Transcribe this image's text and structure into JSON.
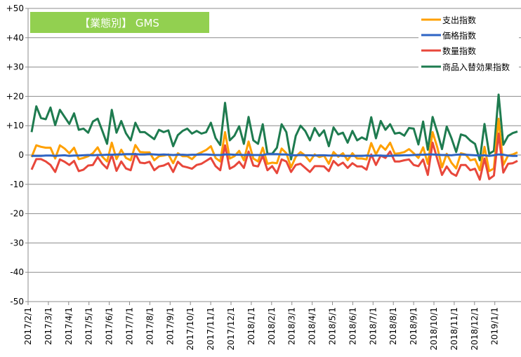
{
  "chart_data": {
    "type": "line",
    "title": "【業態別】 GMS",
    "xlabel": "",
    "ylabel": "",
    "ylim": [
      -50,
      50
    ],
    "yticks": [
      "+50",
      "+40",
      "+30",
      "+20",
      "+10",
      "0",
      "-10",
      "-20",
      "-30",
      "-40",
      "-50"
    ],
    "ytick_values": [
      50,
      40,
      30,
      20,
      10,
      0,
      -10,
      -20,
      -30,
      -40,
      -50
    ],
    "x_tick_labels": [
      "2017/2/1",
      "2017/3/1",
      "2017/4/1",
      "2017/5/1",
      "2017/6/1",
      "2017/7/1",
      "2017/8/1",
      "2017/9/1",
      "2017/10/1",
      "2017/11/1",
      "2017/12/1",
      "2018/1/1",
      "2018/2/1",
      "2018/3/1",
      "2018/4/1",
      "2018/5/1",
      "2018/6/1",
      "2018/7/1",
      "2018/8/1",
      "2018/9/1",
      "2018/10/1",
      "2018/11/1",
      "2018/12/1",
      "2019/1/1"
    ],
    "x_frequency": "weekly",
    "grid": true,
    "legend_position": "top-right",
    "series": [
      {
        "name": "支出指数",
        "color": "#FFA000",
        "values": [
          -0.7,
          3.3,
          2.8,
          2.5,
          2.5,
          -1.2,
          3.3,
          2.2,
          0.6,
          2.5,
          -1.4,
          -1,
          -0.4,
          0.6,
          2.6,
          -0.6,
          -2.2,
          4.2,
          -1.4,
          1.8,
          -1,
          -1.8,
          3.4,
          1,
          0.9,
          0.9,
          -1.8,
          -0.4,
          -0.2,
          0.2,
          -2.8,
          0.6,
          -0.4,
          -0.4,
          -1.4,
          0.2,
          0.9,
          1.7,
          3,
          -1,
          -2.2,
          7.8,
          -1.2,
          -0.4,
          1.4,
          -1.8,
          4.6,
          -1.2,
          -2.2,
          2.5,
          -3,
          -2.6,
          -2.8,
          2.2,
          0.6,
          -4.2,
          -0.6,
          1,
          -0.2,
          -2.2,
          0.2,
          -0.7,
          -0.2,
          -3,
          1,
          -0.6,
          0.6,
          -1.8,
          0.6,
          -1.2,
          -1.2,
          -1.5,
          4.1,
          0.2,
          3.3,
          1.8,
          4.2,
          0.4,
          0.6,
          1,
          2,
          0.6,
          -1,
          2.6,
          -3,
          7.8,
          2.6,
          -4.2,
          0.4,
          -2.6,
          -4.6,
          0.6,
          0.2,
          -1.8,
          -1.4,
          -5.2,
          2.8,
          -5.5,
          -4.6,
          12.4,
          -3.4,
          -0.2,
          0.2,
          0.9
        ]
      },
      {
        "name": "価格指数",
        "color": "#2E64C4",
        "values": [
          -0.3,
          -0.3,
          -0.3,
          -0.2,
          -0.2,
          -0.3,
          -0.2,
          -0.1,
          -0.3,
          -0.2,
          -0.2,
          -0.1,
          0,
          -0.1,
          0,
          0,
          0.1,
          0.1,
          0.2,
          0.2,
          0.3,
          0.3,
          0.3,
          0.2,
          0.2,
          0.3,
          0.2,
          0.1,
          0.2,
          0.1,
          0,
          0.1,
          0.1,
          0,
          0.1,
          0.1,
          0.2,
          0.2,
          0.1,
          0,
          0,
          0.2,
          0.2,
          0.1,
          0.1,
          0,
          0.1,
          0,
          0,
          0,
          0.3,
          0.3,
          0.3,
          0.2,
          0.2,
          -0.1,
          -0.1,
          0,
          -0.1,
          -0.1,
          -0.2,
          -0.1,
          -0.1,
          -0.2,
          -0.2,
          -0.2,
          -0.3,
          -0.3,
          -0.3,
          -0.3,
          -0.3,
          -0.2,
          -0.3,
          -0.2,
          -0.2,
          -0.3,
          -0.3,
          -0.2,
          -0.2,
          -0.1,
          -0.1,
          0,
          0.1,
          0.1,
          0.2,
          0.2,
          0.1,
          0,
          0,
          -0.1,
          0.1,
          0.2,
          0.1,
          0,
          -0.1,
          -0.2,
          -0.1,
          -0.3,
          -0.1,
          0.2,
          0.1,
          -0.2,
          -0.3,
          -0.3
        ]
      },
      {
        "name": "数量指数",
        "color": "#E8473B",
        "values": [
          -5,
          -1.4,
          -1.4,
          -2.2,
          -3.4,
          -5.8,
          -1.5,
          -2.3,
          -3.4,
          -2,
          -5.5,
          -5,
          -3.6,
          -3.4,
          -0.7,
          -3,
          -4.6,
          0.1,
          -5.4,
          -2.2,
          -4.6,
          -5.2,
          0.4,
          -2.6,
          -2.8,
          -2.3,
          -5.2,
          -3.9,
          -3.6,
          -2.8,
          -5.8,
          -2.3,
          -3.8,
          -4.2,
          -4.7,
          -3.4,
          -3,
          -2,
          -1,
          -3.8,
          -5.2,
          3.3,
          -4.7,
          -3.8,
          -2.3,
          -4.4,
          1.2,
          -3.6,
          -3.9,
          -0.2,
          -5.2,
          -3.8,
          -6.2,
          -1.5,
          -2.2,
          -5.8,
          -3.4,
          -3,
          -4.4,
          -5.8,
          -3.8,
          -3.8,
          -3.9,
          -5.5,
          -2,
          -3.6,
          -2.6,
          -4.4,
          -2.8,
          -3.9,
          -3.9,
          -5,
          0.2,
          -3.4,
          -0.2,
          -1,
          1.2,
          -2.2,
          -2.2,
          -1.8,
          -1.5,
          -3.4,
          -3.8,
          -1.5,
          -6.8,
          4.2,
          -1.4,
          -6.8,
          -3.9,
          -6.2,
          -7.1,
          -3.4,
          -3.4,
          -5.2,
          -4.7,
          -8.4,
          -1.2,
          -8.2,
          -7,
          7.3,
          -6,
          -3,
          -2.8,
          -2
        ]
      },
      {
        "name": "商品入替効果指数",
        "color": "#1E7B4F",
        "values": [
          7.8,
          16.6,
          12.6,
          12.2,
          16.2,
          10.2,
          15.4,
          13,
          10.6,
          14.2,
          8.6,
          9,
          7.6,
          11.4,
          12.4,
          8.2,
          3.8,
          15.4,
          7.6,
          11.6,
          7.4,
          5,
          11,
          7.8,
          7.8,
          6.6,
          5.4,
          8.6,
          7.8,
          8.4,
          3,
          6.8,
          8.2,
          9,
          7.3,
          8.2,
          7.3,
          7.8,
          11,
          5.8,
          3.4,
          17.8,
          5,
          6.6,
          9.8,
          3.8,
          13,
          5,
          3.8,
          10.5,
          0.4,
          0.4,
          2.5,
          10.5,
          7.8,
          -1.5,
          6.5,
          10,
          8.2,
          5,
          9.2,
          6.5,
          8.4,
          3,
          9.4,
          7,
          7.6,
          4.2,
          8.2,
          5,
          6,
          5.2,
          12.9,
          5.7,
          11.6,
          8.6,
          10.5,
          7.3,
          7.6,
          6.6,
          9.2,
          9,
          3.6,
          11.4,
          1.8,
          13,
          7.8,
          2,
          9.7,
          5.8,
          1,
          7,
          6.5,
          4.9,
          3.8,
          -1.8,
          10.6,
          0.4,
          1.4,
          20.6,
          3.5,
          6.5,
          7.5,
          8
        ]
      }
    ]
  }
}
